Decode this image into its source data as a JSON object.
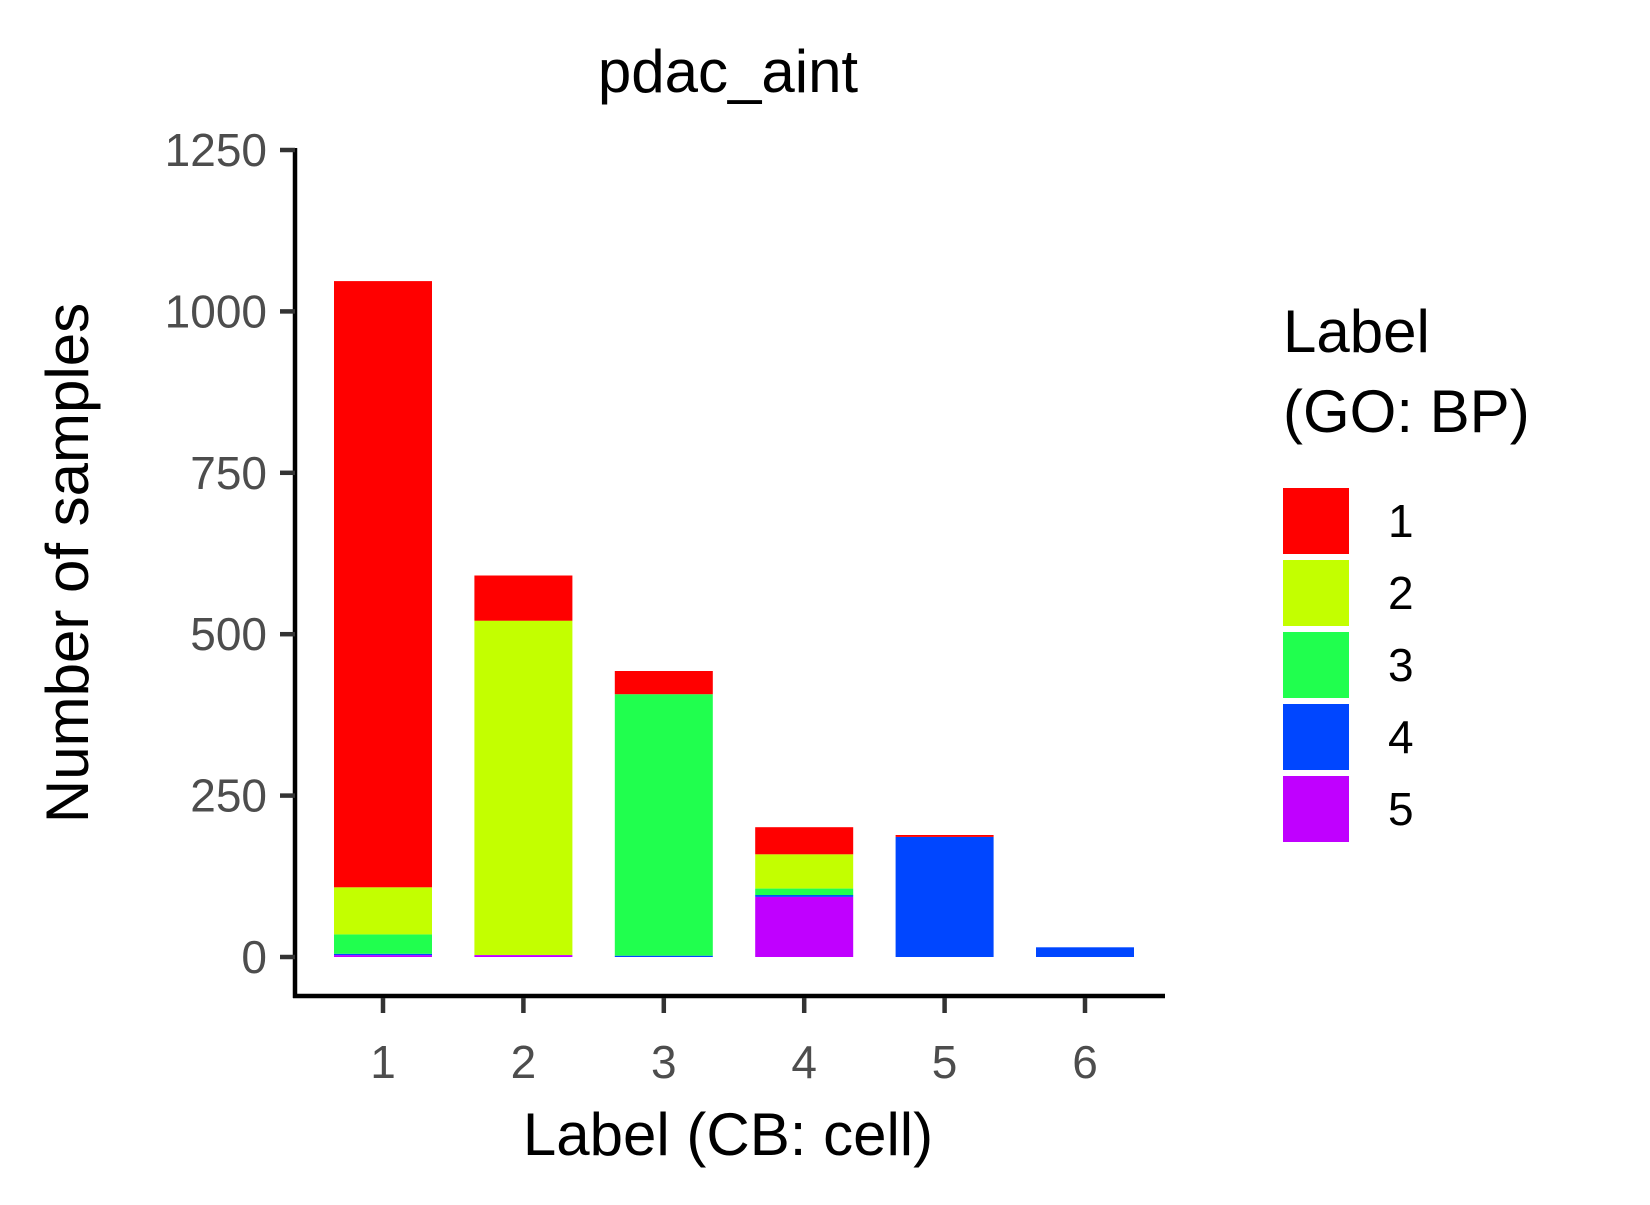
{
  "chart_data": {
    "type": "bar",
    "stacked": true,
    "title": "pdac_aint",
    "xlabel": "Label (CB: cell)",
    "ylabel": "Number of samples",
    "categories": [
      "1",
      "2",
      "3",
      "4",
      "5",
      "6"
    ],
    "ylim": [
      0,
      1250
    ],
    "yticks": [
      0,
      250,
      500,
      750,
      1000,
      1250
    ],
    "series": [
      {
        "name": "5",
        "color": "#C000FF",
        "values": [
          3,
          3,
          0,
          93,
          0,
          0
        ]
      },
      {
        "name": "4",
        "color": "#0046FF",
        "values": [
          2,
          0,
          2,
          3,
          186,
          15
        ]
      },
      {
        "name": "3",
        "color": "#20FF4E",
        "values": [
          30,
          0,
          405,
          10,
          0,
          0
        ]
      },
      {
        "name": "2",
        "color": "#C3FF00",
        "values": [
          73,
          518,
          0,
          53,
          0,
          0
        ]
      },
      {
        "name": "1",
        "color": "#FF0000",
        "values": [
          939,
          70,
          36,
          42,
          3,
          0
        ]
      }
    ],
    "legend": {
      "title_lines": [
        "Label",
        "(GO: BP)"
      ],
      "position": "right",
      "entries": [
        {
          "label": "1",
          "color": "#FF0000"
        },
        {
          "label": "2",
          "color": "#C3FF00"
        },
        {
          "label": "3",
          "color": "#20FF4E"
        },
        {
          "label": "4",
          "color": "#0046FF"
        },
        {
          "label": "5",
          "color": "#C000FF"
        }
      ]
    },
    "grid": false
  }
}
